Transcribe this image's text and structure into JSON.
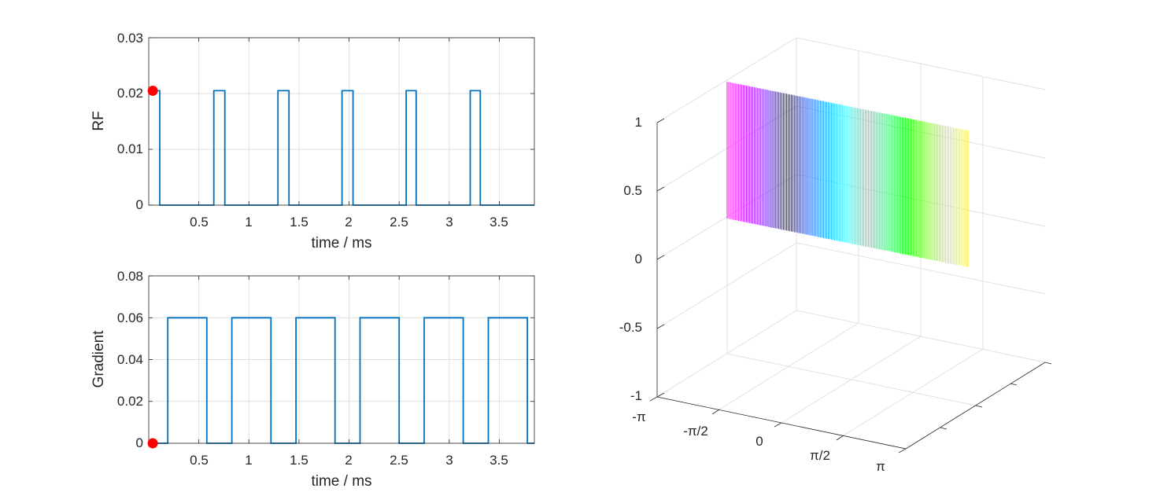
{
  "colors": {
    "line": "#0072BD",
    "marker": "#FF0000",
    "axis": "#262626",
    "grid": "#DFDFDF"
  },
  "chart_data": [
    {
      "type": "line",
      "ylabel": "RF",
      "xlabel": "time / ms",
      "xlim": [
        0,
        3.85
      ],
      "ylim": [
        0,
        0.03
      ],
      "xticks": [
        0.5,
        1,
        1.5,
        2,
        2.5,
        3,
        3.5
      ],
      "xtick_labels": [
        "0.5",
        "1",
        "1.5",
        "2",
        "2.5",
        "3",
        "3.5"
      ],
      "yticks": [
        0,
        0.01,
        0.02,
        0.03
      ],
      "ytick_labels": [
        "0",
        "0.01",
        "0.02",
        "0.03"
      ],
      "grid": true,
      "series": [
        {
          "x": [
            0,
            0.11,
            0.11,
            0.65,
            0.65,
            0.76,
            0.76,
            1.29,
            1.29,
            1.4,
            1.4,
            1.93,
            1.93,
            2.04,
            2.04,
            2.57,
            2.57,
            2.67,
            2.67,
            3.21,
            3.21,
            3.31,
            3.31,
            3.85
          ],
          "y": [
            0.0205,
            0.0205,
            0,
            0,
            0.0205,
            0.0205,
            0,
            0,
            0.0205,
            0.0205,
            0,
            0,
            0.0205,
            0.0205,
            0,
            0,
            0.0205,
            0.0205,
            0,
            0,
            0.0205,
            0.0205,
            0,
            0
          ]
        }
      ],
      "marker": {
        "x": 0.04,
        "y": 0.0205
      }
    },
    {
      "type": "line",
      "ylabel": "Gradient",
      "xlabel": "time / ms",
      "xlim": [
        0,
        3.85
      ],
      "ylim": [
        0,
        0.08
      ],
      "xticks": [
        0.5,
        1,
        1.5,
        2,
        2.5,
        3,
        3.5
      ],
      "xtick_labels": [
        "0.5",
        "1",
        "1.5",
        "2",
        "2.5",
        "3",
        "3.5"
      ],
      "yticks": [
        0,
        0.02,
        0.04,
        0.06,
        0.08
      ],
      "ytick_labels": [
        "0",
        "0.02",
        "0.04",
        "0.06",
        "0.08"
      ],
      "grid": true,
      "series": [
        {
          "x": [
            0,
            0.19,
            0.19,
            0.58,
            0.58,
            0.83,
            0.83,
            1.22,
            1.22,
            1.47,
            1.47,
            1.86,
            1.86,
            2.11,
            2.11,
            2.5,
            2.5,
            2.75,
            2.75,
            3.14,
            3.14,
            3.39,
            3.39,
            3.78,
            3.78,
            3.85
          ],
          "y": [
            0,
            0,
            0.06,
            0.06,
            0,
            0,
            0.06,
            0.06,
            0,
            0,
            0.06,
            0.06,
            0,
            0,
            0.06,
            0.06,
            0,
            0,
            0.06,
            0.06,
            0,
            0,
            0.06,
            0.06,
            0,
            0
          ]
        }
      ],
      "marker": {
        "x": 0.04,
        "y": 0
      }
    },
    {
      "type": "line3d",
      "zlim": [
        -1,
        1
      ],
      "zticks": [
        -1,
        -0.5,
        0,
        0.5,
        1
      ],
      "ztick_labels": [
        "-1",
        "-0.5",
        "0",
        "0.5",
        "1"
      ],
      "xticks": [
        -3.1416,
        -1.5708,
        0,
        1.5708,
        3.1416
      ],
      "xtick_labels": [
        "-π",
        "-π/2",
        "0",
        "π/2",
        "π"
      ],
      "grid": true,
      "colormap": "hsv",
      "surface": {
        "phase_range": [
          -3.1416,
          3.1416
        ],
        "z_lower": 0.0,
        "z_upper": 1.0
      }
    }
  ]
}
